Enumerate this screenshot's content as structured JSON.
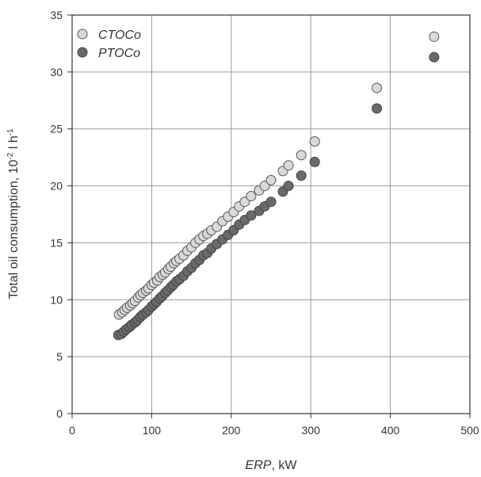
{
  "chart_data": {
    "type": "scatter",
    "xlabel_italic": "ERP",
    "xlabel_rest": ", kW",
    "ylabel_main": "Total oil consumption, 10",
    "ylabel_sup1": "-2",
    "ylabel_mid": " l h",
    "ylabel_sup2": "-1",
    "xlim": [
      0,
      500
    ],
    "ylim": [
      0,
      35
    ],
    "xticks": [
      0,
      100,
      200,
      300,
      400,
      500
    ],
    "yticks": [
      0,
      5,
      10,
      15,
      20,
      25,
      30,
      35
    ],
    "grid": true,
    "legend_position": "top-left",
    "series": [
      {
        "name": "CTOCo",
        "color": "#d9d9d9",
        "points": [
          [
            59,
            8.7
          ],
          [
            63,
            8.9
          ],
          [
            66,
            9.1
          ],
          [
            69,
            9.3
          ],
          [
            73,
            9.5
          ],
          [
            76,
            9.7
          ],
          [
            79,
            9.9
          ],
          [
            83,
            10.2
          ],
          [
            86,
            10.4
          ],
          [
            89,
            10.6
          ],
          [
            93,
            10.8
          ],
          [
            96,
            11.0
          ],
          [
            100,
            11.3
          ],
          [
            103,
            11.5
          ],
          [
            107,
            11.7
          ],
          [
            110,
            12.0
          ],
          [
            114,
            12.2
          ],
          [
            117,
            12.4
          ],
          [
            121,
            12.7
          ],
          [
            124,
            12.9
          ],
          [
            128,
            13.2
          ],
          [
            131,
            13.4
          ],
          [
            135,
            13.6
          ],
          [
            140,
            13.9
          ],
          [
            145,
            14.3
          ],
          [
            150,
            14.6
          ],
          [
            155,
            15.0
          ],
          [
            160,
            15.3
          ],
          [
            165,
            15.6
          ],
          [
            170,
            15.8
          ],
          [
            175,
            16.1
          ],
          [
            182,
            16.4
          ],
          [
            189,
            16.9
          ],
          [
            196,
            17.3
          ],
          [
            203,
            17.7
          ],
          [
            210,
            18.2
          ],
          [
            217,
            18.6
          ],
          [
            225,
            19.1
          ],
          [
            235,
            19.6
          ],
          [
            242,
            20.0
          ],
          [
            250,
            20.5
          ],
          [
            265,
            21.3
          ],
          [
            272,
            21.8
          ],
          [
            288,
            22.7
          ],
          [
            305,
            23.9
          ],
          [
            383,
            28.6
          ],
          [
            455,
            33.1
          ]
        ]
      },
      {
        "name": "PTOCo",
        "color": "#6a6a6a",
        "points": [
          [
            58,
            6.9
          ],
          [
            62,
            7.0
          ],
          [
            65,
            7.2
          ],
          [
            68,
            7.4
          ],
          [
            72,
            7.6
          ],
          [
            75,
            7.8
          ],
          [
            79,
            8.0
          ],
          [
            82,
            8.2
          ],
          [
            86,
            8.5
          ],
          [
            89,
            8.7
          ],
          [
            93,
            8.9
          ],
          [
            96,
            9.1
          ],
          [
            100,
            9.4
          ],
          [
            103,
            9.6
          ],
          [
            106,
            9.8
          ],
          [
            110,
            10.1
          ],
          [
            113,
            10.3
          ],
          [
            117,
            10.6
          ],
          [
            120,
            10.8
          ],
          [
            124,
            11.1
          ],
          [
            127,
            11.3
          ],
          [
            131,
            11.6
          ],
          [
            135,
            11.8
          ],
          [
            140,
            12.1
          ],
          [
            145,
            12.5
          ],
          [
            150,
            12.8
          ],
          [
            155,
            13.2
          ],
          [
            160,
            13.5
          ],
          [
            165,
            13.9
          ],
          [
            170,
            14.1
          ],
          [
            175,
            14.5
          ],
          [
            182,
            14.9
          ],
          [
            189,
            15.3
          ],
          [
            196,
            15.7
          ],
          [
            203,
            16.1
          ],
          [
            210,
            16.6
          ],
          [
            217,
            17.0
          ],
          [
            225,
            17.4
          ],
          [
            235,
            17.8
          ],
          [
            242,
            18.2
          ],
          [
            250,
            18.6
          ],
          [
            265,
            19.5
          ],
          [
            272,
            20.0
          ],
          [
            288,
            20.9
          ],
          [
            305,
            22.1
          ],
          [
            383,
            26.8
          ],
          [
            455,
            31.3
          ]
        ]
      }
    ]
  }
}
